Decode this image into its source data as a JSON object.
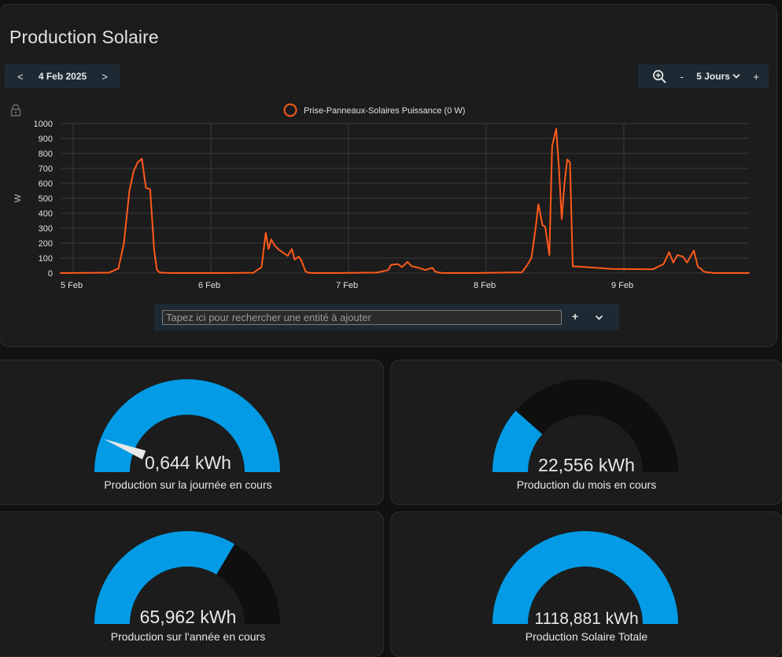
{
  "chart_card": {
    "title": "Production Solaire",
    "date_nav": {
      "prev": "<",
      "date": "4 Feb 2025",
      "next": ">"
    },
    "range_nav": {
      "zoom_icon": "zoom-in-icon",
      "minus": "-",
      "range": "5 Jours",
      "plus": "+"
    },
    "search": {
      "placeholder": "Tapez ici pour rechercher une entité à ajouter",
      "value": "",
      "add": "+"
    }
  },
  "chart_data": {
    "type": "line",
    "title": "",
    "ylabel": "W",
    "xlabel": "",
    "ylim": [
      0,
      1000
    ],
    "yticks": [
      0,
      100,
      200,
      300,
      400,
      500,
      600,
      700,
      800,
      900,
      1000
    ],
    "xlim": [
      0,
      5
    ],
    "xticks": [
      {
        "x": 0,
        "label": "5 Feb"
      },
      {
        "x": 1,
        "label": "6 Feb"
      },
      {
        "x": 2,
        "label": "7 Feb"
      },
      {
        "x": 3,
        "label": "8 Feb"
      },
      {
        "x": 4,
        "label": "9 Feb"
      }
    ],
    "grid": true,
    "legend": "top-center",
    "series": [
      {
        "name": "Prise-Panneaux-Solaires Puissance (0 W)",
        "color": "#ff5a1a",
        "x": [
          0,
          0.35,
          0.42,
          0.46,
          0.5,
          0.53,
          0.56,
          0.59,
          0.62,
          0.65,
          0.68,
          0.7,
          0.72,
          0.74,
          0.77,
          0.8,
          0.84,
          0.9,
          1.0,
          1.2,
          1.4,
          1.46,
          1.49,
          1.51,
          1.53,
          1.55,
          1.58,
          1.61,
          1.65,
          1.68,
          1.7,
          1.73,
          1.75,
          1.78,
          1.8,
          1.83,
          2.0,
          2.3,
          2.38,
          2.4,
          2.45,
          2.48,
          2.52,
          2.55,
          2.6,
          2.65,
          2.7,
          2.72,
          2.75,
          2.8,
          3.0,
          3.35,
          3.38,
          3.42,
          3.45,
          3.47,
          3.5,
          3.52,
          3.55,
          3.57,
          3.6,
          3.62,
          3.64,
          3.66,
          3.68,
          3.7,
          3.72,
          3.74,
          3.76,
          3.78,
          4.0,
          4.3,
          4.38,
          4.42,
          4.45,
          4.48,
          4.52,
          4.55,
          4.6,
          4.63,
          4.65,
          4.67,
          4.7,
          4.73,
          4.75,
          4.8,
          5.0
        ],
        "y": [
          0,
          2,
          30,
          200,
          550,
          680,
          740,
          765,
          570,
          560,
          150,
          20,
          5,
          2,
          1,
          0,
          0,
          0,
          0,
          0,
          2,
          40,
          270,
          160,
          225,
          190,
          160,
          140,
          115,
          160,
          90,
          110,
          80,
          10,
          2,
          0,
          0,
          3,
          20,
          55,
          60,
          40,
          75,
          45,
          35,
          20,
          35,
          10,
          2,
          0,
          0,
          5,
          40,
          100,
          300,
          460,
          320,
          310,
          120,
          850,
          965,
          700,
          360,
          600,
          760,
          740,
          45,
          43,
          43,
          42,
          28,
          25,
          60,
          140,
          70,
          120,
          110,
          70,
          150,
          40,
          30,
          10,
          5,
          2,
          0,
          0,
          0
        ]
      }
    ]
  },
  "gauges": [
    {
      "id": "day",
      "value": "0,644 kWh",
      "label": "Production sur la journée en cours",
      "fraction": 1.0,
      "needle": 0.12
    },
    {
      "id": "month",
      "value": "22,556 kWh",
      "label": "Production du mois en cours",
      "fraction": 0.23,
      "needle": null
    },
    {
      "id": "year",
      "value": "65,962 kWh",
      "label": "Production sur l'année en cours",
      "fraction": 0.67,
      "needle": null
    },
    {
      "id": "total",
      "value": "1118,881 kWh",
      "label": "Production Solaire Totale",
      "fraction": 1.0,
      "needle": null
    }
  ],
  "colors": {
    "gauge_fill": "#039be5",
    "gauge_track": "#0f0f0f",
    "needle": "#e8e8e8"
  }
}
